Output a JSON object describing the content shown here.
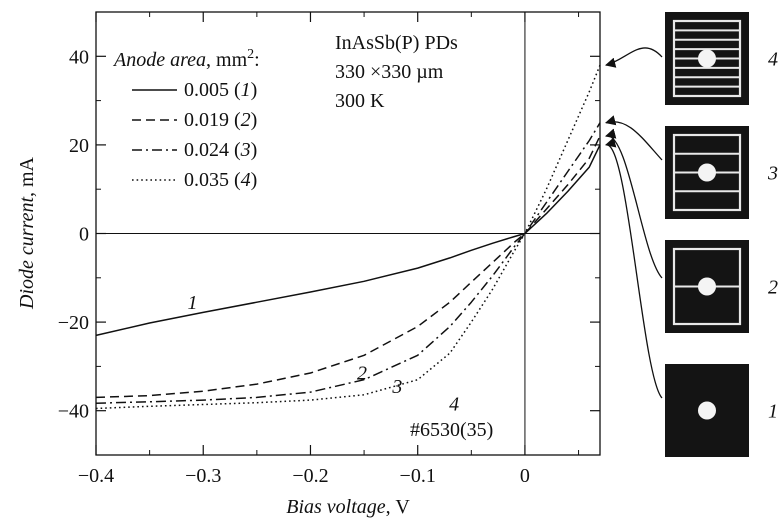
{
  "chart_data": {
    "type": "line",
    "xlabel": "Bias voltage",
    "xunit": "V",
    "ylabel": "Diode current",
    "yunit": "mA",
    "xlim": [
      -0.4,
      0.07
    ],
    "ylim": [
      -50,
      50
    ],
    "x_ticks": [
      "−0.4",
      "−0.3",
      "−0.2",
      "−0.1",
      "0"
    ],
    "y_ticks": [
      "−40",
      "−20",
      "0",
      "20",
      "40"
    ],
    "legend_title": "Anode area",
    "legend_unit": "mm",
    "legend_unit_sup": "2",
    "legend_placement": "top-left",
    "annotation_lines": [
      "InAsSb(P) PDs",
      "330 ×330 µm",
      "300 K"
    ],
    "sample_id": "#6530(35)",
    "series": [
      {
        "name": "0.005",
        "id": "1",
        "style": "solid",
        "x": [
          -0.4,
          -0.35,
          -0.3,
          -0.25,
          -0.2,
          -0.15,
          -0.1,
          -0.07,
          -0.05,
          -0.03,
          -0.01,
          0,
          0.02,
          0.04,
          0.06,
          0.07
        ],
        "y": [
          -23,
          -20.2,
          -17.8,
          -15.5,
          -13.2,
          -10.8,
          -7.8,
          -5.5,
          -3.8,
          -2.2,
          -0.7,
          0,
          4.5,
          9.5,
          15,
          20
        ]
      },
      {
        "name": "0.019",
        "id": "2",
        "style": "dashed",
        "x": [
          -0.4,
          -0.35,
          -0.3,
          -0.25,
          -0.2,
          -0.15,
          -0.1,
          -0.07,
          -0.05,
          -0.03,
          -0.01,
          0,
          0.02,
          0.04,
          0.06,
          0.07
        ],
        "y": [
          -37,
          -36.6,
          -35.6,
          -34,
          -31.5,
          -27.5,
          -21,
          -15.5,
          -11,
          -6.5,
          -2,
          0,
          5.5,
          11,
          17,
          22
        ]
      },
      {
        "name": "0.024",
        "id": "3",
        "style": "dashdot",
        "x": [
          -0.4,
          -0.35,
          -0.3,
          -0.25,
          -0.2,
          -0.15,
          -0.1,
          -0.07,
          -0.05,
          -0.03,
          -0.01,
          0,
          0.02,
          0.04,
          0.06,
          0.07
        ],
        "y": [
          -38.3,
          -38,
          -37.6,
          -37,
          -35.8,
          -33,
          -27.5,
          -21,
          -15.5,
          -9.5,
          -3,
          0,
          7,
          14,
          21,
          25
        ]
      },
      {
        "name": "0.035",
        "id": "4",
        "style": "dotted",
        "x": [
          -0.4,
          -0.35,
          -0.3,
          -0.25,
          -0.2,
          -0.15,
          -0.1,
          -0.07,
          -0.05,
          -0.03,
          -0.01,
          0,
          0.02,
          0.04,
          0.06,
          0.07
        ],
        "y": [
          -39.5,
          -39,
          -38.6,
          -38.2,
          -37.6,
          -36.4,
          -33,
          -27,
          -20,
          -12.5,
          -4,
          0,
          10,
          21,
          32,
          38
        ]
      }
    ],
    "curve_labels": [
      {
        "text": "1",
        "x": -0.31,
        "y": -17
      },
      {
        "text": "2",
        "x": -0.152,
        "y": -33
      },
      {
        "text": "3",
        "x": -0.119,
        "y": -36
      },
      {
        "text": "4",
        "x": -0.066,
        "y": -40
      }
    ],
    "side_images": [
      {
        "label": "4",
        "stripes": 7,
        "targets_series": "4"
      },
      {
        "label": "3",
        "stripes": 3,
        "targets_series": "3"
      },
      {
        "label": "2",
        "stripes": 1,
        "targets_series": "2"
      },
      {
        "label": "1",
        "stripes": 0,
        "targets_series": "1"
      }
    ]
  }
}
